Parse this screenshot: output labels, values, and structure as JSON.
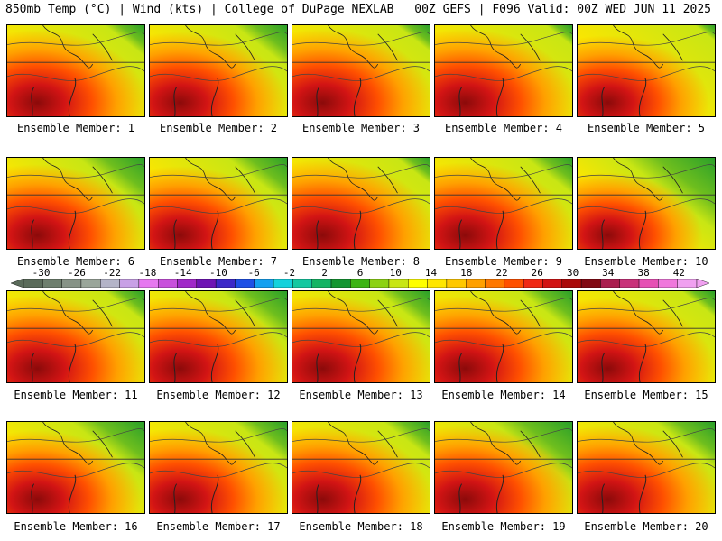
{
  "header": {
    "left": "850mb Temp (°C) | Wind (kts) | College of DuPage NEXLAB",
    "right": "00Z GEFS | F096 Valid: 00Z WED JUN 11 2025"
  },
  "colorbar": {
    "tick_labels": [
      "-30",
      "-26",
      "-22",
      "-18",
      "-14",
      "-10",
      "-6",
      "-2",
      "2",
      "6",
      "10",
      "14",
      "18",
      "22",
      "26",
      "30",
      "34",
      "38",
      "42"
    ],
    "colors": [
      "#5a6b5a",
      "#6e7f6e",
      "#879387",
      "#9aa69a",
      "#b4b4c8",
      "#c8a0e6",
      "#e678f0",
      "#c850dc",
      "#a028c8",
      "#6e14b4",
      "#3c28c8",
      "#1e50e6",
      "#14a0f0",
      "#14d2dc",
      "#14c8a0",
      "#14b464",
      "#149632",
      "#3cb414",
      "#8cd214",
      "#c8e614",
      "#ffff00",
      "#ffe600",
      "#ffc800",
      "#ffa000",
      "#ff7800",
      "#ff5000",
      "#f02814",
      "#d21414",
      "#aa0a0a",
      "#820a14",
      "#aa1e50",
      "#c8327a",
      "#e650b4",
      "#f078dc",
      "#f0a0f0"
    ],
    "value_min": -32,
    "value_max": 44
  },
  "panels": [
    {
      "label": "Ensemble Member: 1",
      "fields": {
        "green": 0.3,
        "heat": 0.7
      }
    },
    {
      "label": "Ensemble Member: 2",
      "fields": {
        "green": 0.4,
        "heat": 0.65
      }
    },
    {
      "label": "Ensemble Member: 3",
      "fields": {
        "green": 0.25,
        "heat": 0.75
      }
    },
    {
      "label": "Ensemble Member: 4",
      "fields": {
        "green": 0.2,
        "heat": 0.75
      }
    },
    {
      "label": "Ensemble Member: 5",
      "fields": {
        "green": 0.15,
        "heat": 0.55
      }
    },
    {
      "label": "Ensemble Member: 6",
      "fields": {
        "green": 0.5,
        "heat": 0.65
      }
    },
    {
      "label": "Ensemble Member: 7",
      "fields": {
        "green": 0.45,
        "heat": 0.6
      }
    },
    {
      "label": "Ensemble Member: 8",
      "fields": {
        "green": 0.25,
        "heat": 0.8
      }
    },
    {
      "label": "Ensemble Member: 9",
      "fields": {
        "green": 0.35,
        "heat": 0.7
      }
    },
    {
      "label": "Ensemble Member: 10",
      "fields": {
        "green": 0.7,
        "heat": 0.4
      }
    },
    {
      "label": "Ensemble Member: 11",
      "fields": {
        "green": 0.3,
        "heat": 0.75
      }
    },
    {
      "label": "Ensemble Member: 12",
      "fields": {
        "green": 0.5,
        "heat": 0.7
      }
    },
    {
      "label": "Ensemble Member: 13",
      "fields": {
        "green": 0.4,
        "heat": 0.75
      }
    },
    {
      "label": "Ensemble Member: 14",
      "fields": {
        "green": 0.4,
        "heat": 0.7
      }
    },
    {
      "label": "Ensemble Member: 15",
      "fields": {
        "green": 0.25,
        "heat": 0.65
      }
    },
    {
      "label": "Ensemble Member: 16",
      "fields": {
        "green": 0.55,
        "heat": 0.6
      }
    },
    {
      "label": "Ensemble Member: 17",
      "fields": {
        "green": 0.4,
        "heat": 0.65
      }
    },
    {
      "label": "Ensemble Member: 18",
      "fields": {
        "green": 0.35,
        "heat": 0.7
      }
    },
    {
      "label": "Ensemble Member: 19",
      "fields": {
        "green": 0.6,
        "heat": 0.75
      }
    },
    {
      "label": "Ensemble Member: 20",
      "fields": {
        "green": 0.45,
        "heat": 0.75
      }
    }
  ]
}
